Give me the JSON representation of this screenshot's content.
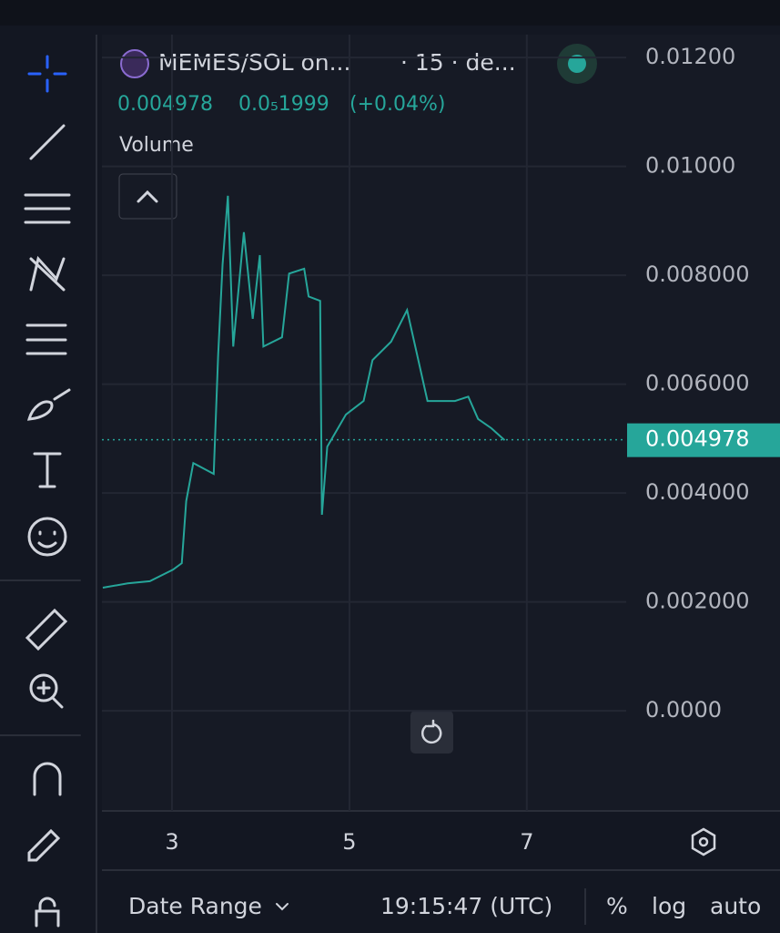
{
  "header": {
    "symbol": "MEMES/SOL on...",
    "interval": "· 15 · de...",
    "change": "0.0₅1999",
    "change_pct": "(+0.04%)",
    "volume_label": "Volume"
  },
  "footer": {
    "date_range": "Date Range",
    "time": "19:15:47 (UTC)",
    "percent": "%",
    "log": "log",
    "auto": "auto"
  },
  "chart_data": {
    "type": "line",
    "color": "#26a69a",
    "grid": true,
    "x": [
      2.22,
      2.5,
      2.75,
      3.01,
      3.11,
      3.16,
      3.24,
      3.47,
      3.52,
      3.57,
      3.63,
      3.69,
      3.81,
      3.91,
      3.99,
      4.03,
      4.24,
      4.32,
      4.49,
      4.54,
      4.67,
      4.69,
      4.75,
      4.96,
      5.16,
      5.26,
      5.47,
      5.65,
      5.73,
      5.88,
      6.19,
      6.34,
      6.45,
      6.6,
      6.75
    ],
    "values": [
      0.00226,
      0.00234,
      0.00238,
      0.00259,
      0.00271,
      0.00385,
      0.00455,
      0.00435,
      0.00653,
      0.0082,
      0.00946,
      0.00669,
      0.00879,
      0.0072,
      0.00837,
      0.00669,
      0.00686,
      0.00803,
      0.00812,
      0.00761,
      0.00753,
      0.0036,
      0.00485,
      0.00544,
      0.00569,
      0.00644,
      0.00678,
      0.00736,
      0.00678,
      0.00569,
      0.00569,
      0.00577,
      0.00536,
      0.00519,
      0.00497
    ],
    "last_price": 0.004978,
    "xlim": [
      2.21,
      8.12
    ],
    "xticks": [
      3,
      5,
      7
    ],
    "ylim": [
      -0.00184,
      0.01242
    ],
    "yticks": [
      {
        "value": 0,
        "label": "0.0000"
      },
      {
        "value": 0.002,
        "label": "0.002000"
      },
      {
        "value": 0.004,
        "label": "0.004000"
      },
      {
        "value": 0.006,
        "label": "0.006000"
      },
      {
        "value": 0.008,
        "label": "0.008000"
      },
      {
        "value": 0.01,
        "label": "0.01000"
      },
      {
        "value": 0.012,
        "label": "0.01200"
      }
    ]
  }
}
